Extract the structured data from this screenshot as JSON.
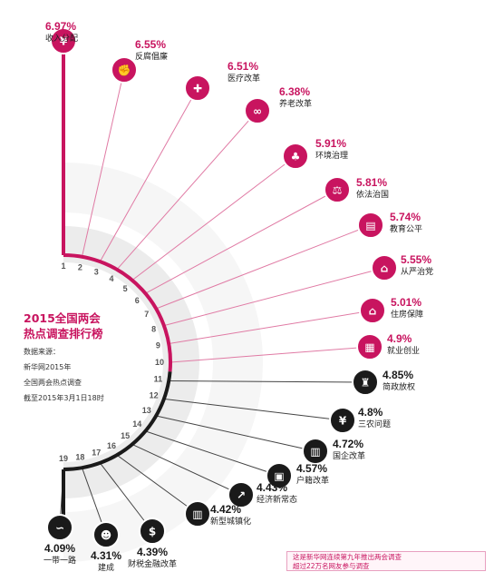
{
  "infographic": {
    "title_line1": "2015全国两会",
    "title_line2": "热点调查排行榜",
    "source_lines": [
      "数据来源：",
      "新华网2015年",
      "全国两会热点调查",
      "截至2015年3月1日18时"
    ],
    "note_lines": [
      "这是新华网连续第九年推出两会调查",
      "超过22万名网友参与调查"
    ],
    "colors": {
      "magenta": "#c8145f",
      "dark": "#1a1a1a",
      "line": "#e07aa4"
    }
  },
  "chart_data": {
    "type": "radial-ranking",
    "title": "2015全国两会热点调查排行榜",
    "items": [
      {
        "rank": 1,
        "label": "收入分配",
        "value": 6.97,
        "value_text": "6.97%",
        "icon": "money-bag-icon",
        "glyph": "¥"
      },
      {
        "rank": 2,
        "label": "反腐倡廉",
        "value": 6.55,
        "value_text": "6.55%",
        "icon": "fist-icon",
        "glyph": "✊"
      },
      {
        "rank": 3,
        "label": "医疗改革",
        "value": 6.51,
        "value_text": "6.51%",
        "icon": "medical-kit-icon",
        "glyph": "✚"
      },
      {
        "rank": 4,
        "label": "养老改革",
        "value": 6.38,
        "value_text": "6.38%",
        "icon": "glasses-icon",
        "glyph": "∞"
      },
      {
        "rank": 5,
        "label": "环境治理",
        "value": 5.91,
        "value_text": "5.91%",
        "icon": "leaf-icon",
        "glyph": "♣"
      },
      {
        "rank": 6,
        "label": "依法治国",
        "value": 5.81,
        "value_text": "5.81%",
        "icon": "gavel-icon",
        "glyph": "⚖"
      },
      {
        "rank": 7,
        "label": "教育公平",
        "value": 5.74,
        "value_text": "5.74%",
        "icon": "book-icon",
        "glyph": "▤"
      },
      {
        "rank": 8,
        "label": "从严治党",
        "value": 5.55,
        "value_text": "5.55%",
        "icon": "building-icon",
        "glyph": "⌂"
      },
      {
        "rank": 9,
        "label": "住房保障",
        "value": 5.01,
        "value_text": "5.01%",
        "icon": "house-icon",
        "glyph": "⌂"
      },
      {
        "rank": 10,
        "label": "就业创业",
        "value": 4.9,
        "value_text": "4.9%",
        "icon": "calculator-icon",
        "glyph": "▦"
      },
      {
        "rank": 11,
        "label": "简政放权",
        "value": 4.85,
        "value_text": "4.85%",
        "icon": "stamp-icon",
        "glyph": "♜"
      },
      {
        "rank": 12,
        "label": "三农问题",
        "value": 4.8,
        "value_text": "4.8%",
        "icon": "wheat-icon",
        "glyph": "¥"
      },
      {
        "rank": 13,
        "label": "国企改革",
        "value": 4.72,
        "value_text": "4.72%",
        "icon": "factory-icon",
        "glyph": "▥"
      },
      {
        "rank": 14,
        "label": "户籍改革",
        "value": 4.57,
        "value_text": "4.57%",
        "icon": "id-card-icon",
        "glyph": "▣"
      },
      {
        "rank": 15,
        "label": "经济新常态",
        "value": 4.43,
        "value_text": "4.43%",
        "icon": "car-icon",
        "glyph": "↗"
      },
      {
        "rank": 16,
        "label": "新型城镇化",
        "value": 4.42,
        "value_text": "4.42%",
        "icon": "city-icon",
        "glyph": "▥"
      },
      {
        "rank": 17,
        "label": "财税金融改革",
        "value": 4.39,
        "value_text": "4.39%",
        "icon": "money-icon",
        "glyph": "$"
      },
      {
        "rank": 18,
        "label": "建成",
        "value": 4.31,
        "value_text": "4.31%",
        "icon": "people-icon",
        "glyph": "☻"
      },
      {
        "rank": 19,
        "label": "一带一路",
        "value": 4.09,
        "value_text": "4.09%",
        "icon": "road-icon",
        "glyph": "∽"
      }
    ]
  }
}
